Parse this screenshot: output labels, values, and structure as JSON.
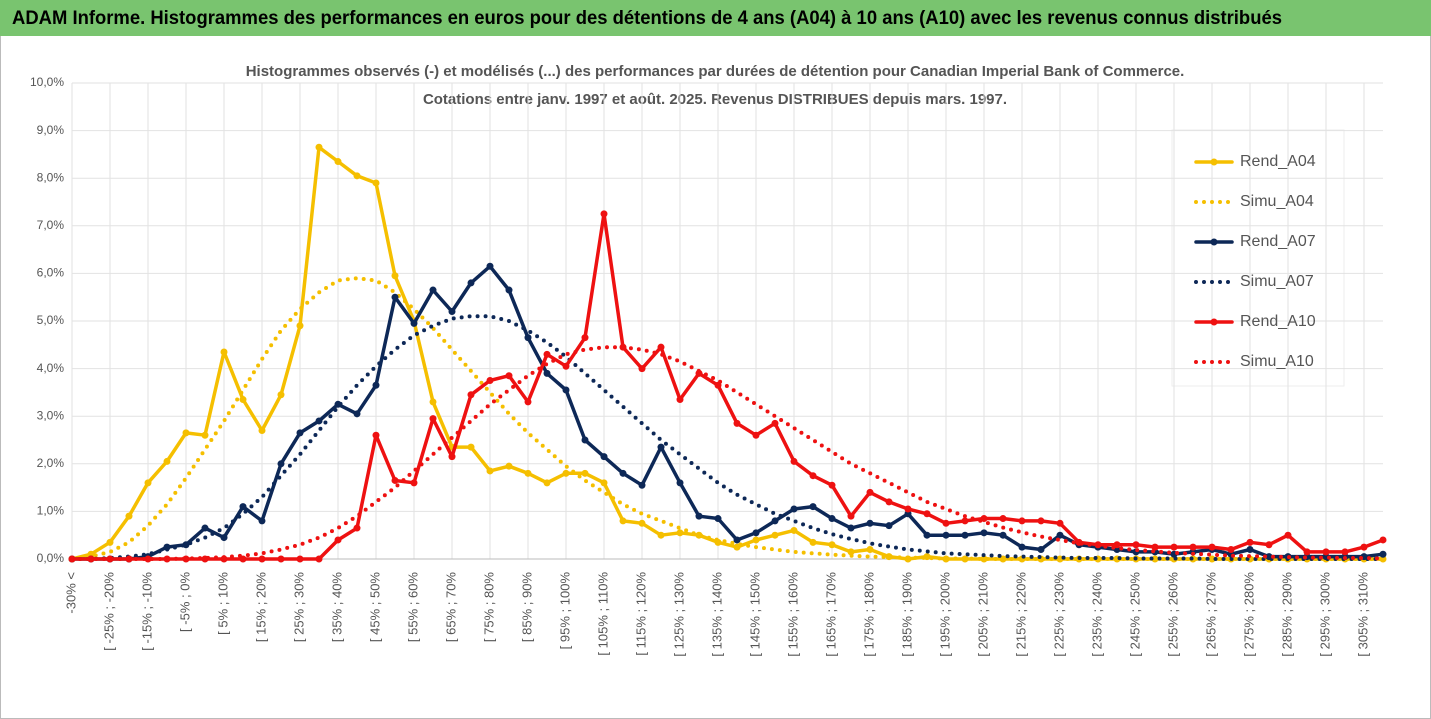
{
  "header": {
    "title": "ADAM Informe. Histogrammes des performances en euros pour des détentions de 4 ans (A04) à 10 ans (A10) avec les revenus connus distribués"
  },
  "chart_data": {
    "type": "line",
    "subtitle": [
      "Histogrammes observés (-) et modélisés (...) des performances par durées de détention pour Canadian Imperial Bank of Commerce.",
      "Cotations entre janv. 1997 et août. 2025. Revenus DISTRIBUES depuis mars. 1997."
    ],
    "categories": [
      "-30% <",
      null,
      "[ -25% ; -20%",
      null,
      "[ -15% ; -10%",
      null,
      "[ -5% ; 0%",
      null,
      "[ 5% ; 10%",
      null,
      "[ 15% ; 20%",
      null,
      "[ 25% ; 30%",
      null,
      "[ 35% ; 40%",
      null,
      "[ 45% ; 50%",
      null,
      "[ 55% ; 60%",
      null,
      "[ 65% ; 70%",
      null,
      "[ 75% ; 80%",
      null,
      "[ 85% ; 90%",
      null,
      "[ 95% ; 100%",
      null,
      "[ 105% ; 110%",
      null,
      "[ 115% ; 120%",
      null,
      "[ 125% ; 130%",
      null,
      "[ 135% ; 140%",
      null,
      "[ 145% ; 150%",
      null,
      "[ 155% ; 160%",
      null,
      "[ 165% ; 170%",
      null,
      "[ 175% ; 180%",
      null,
      "[ 185% ; 190%",
      null,
      "[ 195% ; 200%",
      null,
      "[ 205% ; 210%",
      null,
      "[ 215% ; 220%",
      null,
      "[ 225% ; 230%",
      null,
      "[ 235% ; 240%",
      null,
      "[ 245% ; 250%",
      null,
      "[ 255% ; 260%",
      null,
      "[ 265% ; 270%",
      null,
      "[ 275% ; 280%",
      null,
      "[ 285% ; 290%",
      null,
      "[ 295% ; 300%",
      null,
      "[ 305% ; 310%",
      null
    ],
    "series": [
      {
        "name": "Rend_A04",
        "color": "#f5bf00",
        "line_style": "solid",
        "values": [
          0,
          0.1,
          0.35,
          0.9,
          1.6,
          2.05,
          2.65,
          2.6,
          4.35,
          3.35,
          2.7,
          3.45,
          4.9,
          8.65,
          8.35,
          8.05,
          7.9,
          5.95,
          5.0,
          3.3,
          2.35,
          2.35,
          1.85,
          1.95,
          1.8,
          1.6,
          1.8,
          1.8,
          1.6,
          0.8,
          0.75,
          0.5,
          0.55,
          0.5,
          0.35,
          0.25,
          0.4,
          0.5,
          0.6,
          0.35,
          0.3,
          0.15,
          0.2,
          0.05,
          0,
          0.05,
          0,
          0,
          0,
          0,
          0,
          0,
          0,
          0,
          0,
          0,
          0,
          0,
          0,
          0,
          0,
          0,
          0,
          0,
          0,
          0,
          0,
          0,
          0,
          0
        ]
      },
      {
        "name": "Simu_A04",
        "color": "#f5bf00",
        "line_style": "dotted",
        "values": [
          0,
          0.05,
          0.15,
          0.35,
          0.7,
          1.15,
          1.7,
          2.3,
          2.9,
          3.55,
          4.2,
          4.8,
          5.25,
          5.6,
          5.85,
          5.9,
          5.85,
          5.6,
          5.25,
          4.85,
          4.4,
          3.95,
          3.5,
          3.05,
          2.65,
          2.3,
          1.95,
          1.65,
          1.4,
          1.15,
          0.95,
          0.8,
          0.65,
          0.5,
          0.4,
          0.32,
          0.25,
          0.2,
          0.15,
          0.12,
          0.09,
          0.07,
          0.05,
          0.04,
          0.03,
          0.02,
          0.01,
          0.01,
          0,
          0,
          0,
          0,
          0,
          0,
          0,
          0,
          0,
          0,
          0,
          0,
          0,
          0,
          0,
          0,
          0,
          0,
          0,
          0,
          0,
          0
        ]
      },
      {
        "name": "Rend_A07",
        "color": "#0d2857",
        "line_style": "solid",
        "values": [
          0,
          0,
          0,
          0,
          0.05,
          0.25,
          0.3,
          0.65,
          0.45,
          1.1,
          0.8,
          2.0,
          2.65,
          2.9,
          3.25,
          3.05,
          3.65,
          5.5,
          4.95,
          5.65,
          5.2,
          5.8,
          6.15,
          5.65,
          4.65,
          3.9,
          3.55,
          2.5,
          2.15,
          1.8,
          1.55,
          2.35,
          1.6,
          0.9,
          0.85,
          0.4,
          0.55,
          0.8,
          1.05,
          1.1,
          0.85,
          0.65,
          0.75,
          0.7,
          0.95,
          0.5,
          0.5,
          0.5,
          0.55,
          0.5,
          0.25,
          0.2,
          0.5,
          0.3,
          0.25,
          0.2,
          0.15,
          0.15,
          0.1,
          0.15,
          0.2,
          0.1,
          0.2,
          0.05,
          0.05,
          0.05,
          0.05,
          0.05,
          0.05,
          0.1
        ]
      },
      {
        "name": "Simu_A07",
        "color": "#0d2857",
        "line_style": "dotted",
        "values": [
          0,
          0,
          0.02,
          0.05,
          0.1,
          0.2,
          0.3,
          0.45,
          0.65,
          0.95,
          1.3,
          1.75,
          2.2,
          2.7,
          3.2,
          3.65,
          4.05,
          4.4,
          4.7,
          4.9,
          5.05,
          5.1,
          5.1,
          5.0,
          4.8,
          4.55,
          4.25,
          3.9,
          3.55,
          3.2,
          2.85,
          2.5,
          2.2,
          1.9,
          1.6,
          1.35,
          1.15,
          0.95,
          0.8,
          0.65,
          0.52,
          0.42,
          0.33,
          0.26,
          0.2,
          0.16,
          0.12,
          0.1,
          0.08,
          0.06,
          0.05,
          0.04,
          0.03,
          0.02,
          0.02,
          0.02,
          0.01,
          0.01,
          0.01,
          0.01,
          0,
          0,
          0,
          0,
          0,
          0,
          0,
          0,
          0,
          0
        ]
      },
      {
        "name": "Rend_A10",
        "color": "#ee1111",
        "line_style": "solid",
        "values": [
          0,
          0,
          0,
          0,
          0,
          0,
          0,
          0,
          0,
          0,
          0,
          0,
          0,
          0,
          0.4,
          0.65,
          2.6,
          1.65,
          1.6,
          2.95,
          2.15,
          3.45,
          3.75,
          3.85,
          3.3,
          4.3,
          4.05,
          4.65,
          7.25,
          4.45,
          4.0,
          4.45,
          3.35,
          3.9,
          3.65,
          2.85,
          2.6,
          2.85,
          2.05,
          1.75,
          1.55,
          0.9,
          1.4,
          1.2,
          1.05,
          0.95,
          0.75,
          0.8,
          0.85,
          0.85,
          0.8,
          0.8,
          0.75,
          0.35,
          0.3,
          0.3,
          0.3,
          0.25,
          0.25,
          0.25,
          0.25,
          0.2,
          0.35,
          0.3,
          0.5,
          0.15,
          0.15,
          0.15,
          0.25,
          0.4
        ]
      },
      {
        "name": "Simu_A10",
        "color": "#ee1111",
        "line_style": "dotted",
        "values": [
          0,
          0,
          0,
          0,
          0,
          0,
          0.01,
          0.02,
          0.04,
          0.07,
          0.12,
          0.2,
          0.3,
          0.45,
          0.65,
          0.9,
          1.2,
          1.5,
          1.85,
          2.2,
          2.55,
          2.9,
          3.25,
          3.55,
          3.85,
          4.1,
          4.3,
          4.4,
          4.45,
          4.45,
          4.4,
          4.3,
          4.15,
          3.95,
          3.75,
          3.5,
          3.25,
          3.0,
          2.75,
          2.5,
          2.25,
          2.0,
          1.8,
          1.6,
          1.4,
          1.2,
          1.05,
          0.9,
          0.78,
          0.66,
          0.56,
          0.47,
          0.4,
          0.33,
          0.28,
          0.23,
          0.19,
          0.16,
          0.13,
          0.11,
          0.09,
          0.07,
          0.06,
          0.05,
          0.04,
          0.03,
          0.03,
          0.02,
          0.02,
          0.01
        ]
      }
    ],
    "ylim": [
      0,
      10
    ],
    "yticks": [
      {
        "value": 0,
        "label": "0,0%"
      },
      {
        "value": 1,
        "label": "1,0%"
      },
      {
        "value": 2,
        "label": "2,0%"
      },
      {
        "value": 3,
        "label": "3,0%"
      },
      {
        "value": 4,
        "label": "4,0%"
      },
      {
        "value": 5,
        "label": "5,0%"
      },
      {
        "value": 6,
        "label": "6,0%"
      },
      {
        "value": 7,
        "label": "7,0%"
      },
      {
        "value": 8,
        "label": "8,0%"
      },
      {
        "value": 9,
        "label": "9,0%"
      },
      {
        "value": 10,
        "label": "10,0%"
      }
    ],
    "grid": true,
    "legend": "right"
  }
}
